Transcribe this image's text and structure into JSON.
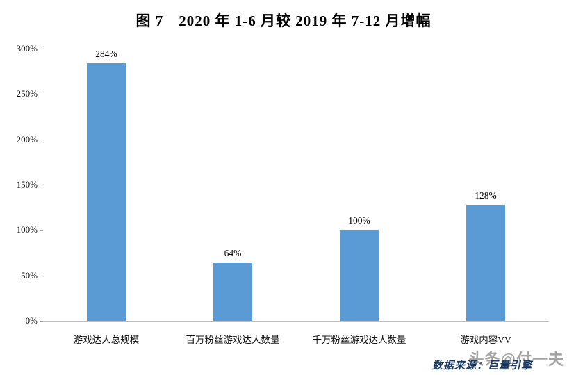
{
  "title": "图 7　2020 年 1-6 月较 2019 年 7-12 月增幅",
  "source_note": "数据来源：巨量引擎",
  "watermark": "头条@付一夫",
  "colors": {
    "bar": "#5b9bd5",
    "axis_line": "#bfbfbf",
    "source_text": "#17375e",
    "watermark_text": "#a3a3a3"
  },
  "chart_data": {
    "type": "bar",
    "title": "图 7　2020 年 1-6 月较 2019 年 7-12 月增幅",
    "categories": [
      "游戏达人总规模",
      "百万粉丝游戏达人数量",
      "千万粉丝游戏达人数量",
      "游戏内容VV"
    ],
    "values": [
      284,
      64,
      100,
      128
    ],
    "value_labels": [
      "284%",
      "64%",
      "100%",
      "128%"
    ],
    "xlabel": "",
    "ylabel": "",
    "ylim": [
      0,
      300
    ],
    "ytick_step": 50,
    "ytick_labels": [
      "0%",
      "50%",
      "100%",
      "150%",
      "200%",
      "250%",
      "300%"
    ],
    "grid": false,
    "legend": "none",
    "bar_color": "#5b9bd5"
  }
}
